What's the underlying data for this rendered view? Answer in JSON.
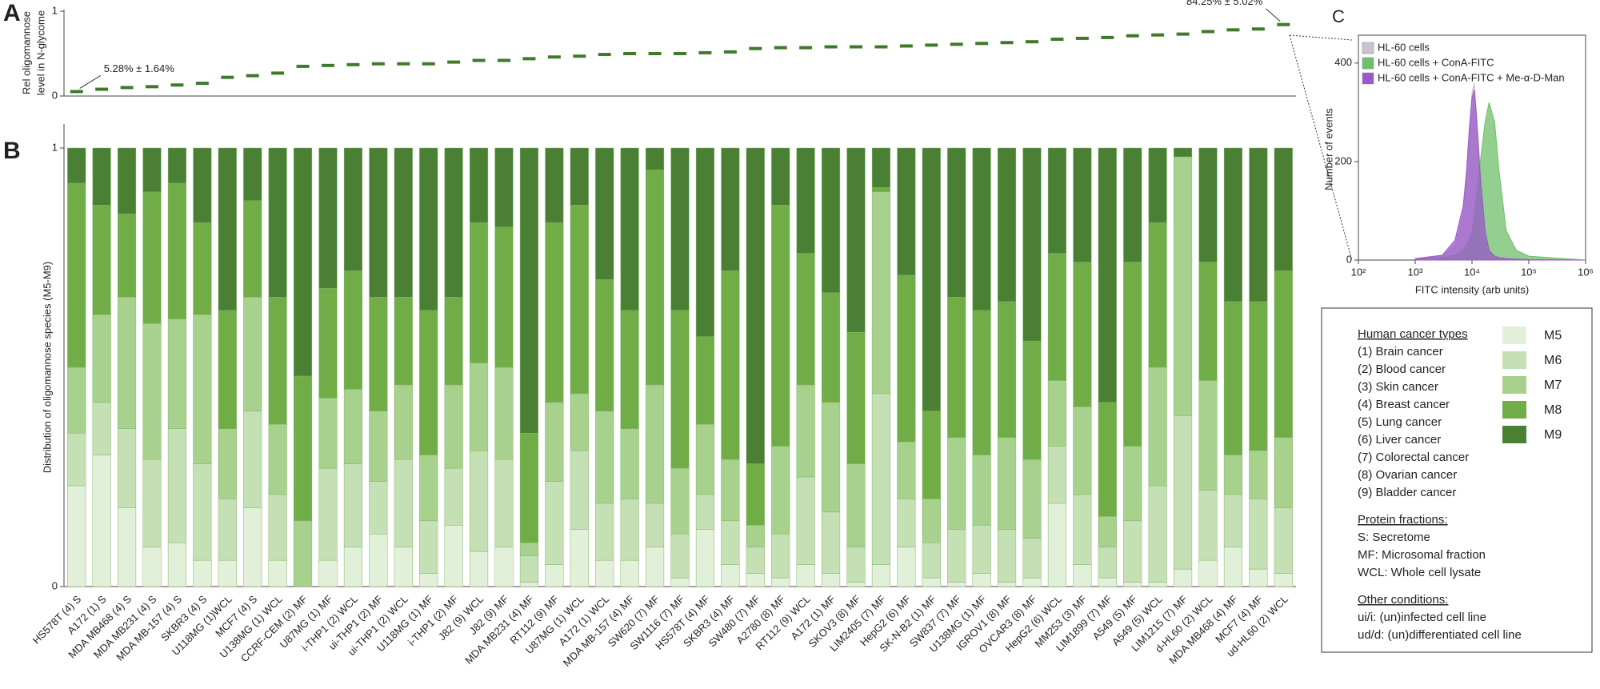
{
  "panel_labels": [
    "A",
    "B",
    "C"
  ],
  "chart_data": [
    {
      "type": "dot",
      "ylabel": [
        "Rel oligomannose",
        "level in N-glycome"
      ],
      "color": "#3f7a2c",
      "ylim": [
        0,
        1
      ],
      "yticks": [
        0,
        1
      ],
      "values": [
        0.0528,
        0.08,
        0.1,
        0.11,
        0.13,
        0.15,
        0.22,
        0.24,
        0.27,
        0.35,
        0.36,
        0.37,
        0.38,
        0.38,
        0.38,
        0.4,
        0.42,
        0.42,
        0.44,
        0.46,
        0.47,
        0.49,
        0.5,
        0.5,
        0.5,
        0.51,
        0.52,
        0.56,
        0.57,
        0.57,
        0.58,
        0.58,
        0.58,
        0.59,
        0.6,
        0.61,
        0.62,
        0.63,
        0.64,
        0.67,
        0.68,
        0.69,
        0.71,
        0.72,
        0.73,
        0.76,
        0.78,
        0.79,
        0.8425
      ],
      "value_labels": [
        "5.28% ± 1.64%",
        null,
        null,
        null,
        null,
        null,
        null,
        null,
        null,
        null,
        null,
        null,
        null,
        null,
        null,
        null,
        null,
        null,
        null,
        null,
        null,
        null,
        null,
        null,
        null,
        null,
        null,
        null,
        null,
        null,
        null,
        null,
        null,
        null,
        null,
        null,
        null,
        null,
        null,
        null,
        null,
        null,
        null,
        null,
        null,
        null,
        null,
        null,
        "84.25% ± 5.02%"
      ]
    },
    {
      "type": "stacked_bar",
      "ylabel": "Distribution of oligomannose species (M5-M9)",
      "ylim": [
        0,
        1
      ],
      "yticks": [
        0,
        1
      ],
      "categories": [
        "HS578T (4) S",
        "A172 (1) S",
        "MDA MB468 (4) S",
        "MDA MB231 (4) S",
        "MDA MB-157 (4) S",
        "SKBR3 (4) S",
        "U118MG (1)WCL",
        "MCF7 (4) S",
        "U138MG (1) WCL",
        "CCRF-CEM (2) MF",
        "U87MG (1) MF",
        "i-THP1 (2) WCL",
        "ui-THP1 (2) MF",
        "ui-THP1 (2) WCL",
        "U118MG (1) MF",
        "i-THP1 (2) MF",
        "J82 (9) WCL",
        "J82 (9) MF",
        "MDA MB231 (4) MF",
        "RT112 (9) MF",
        "U87MG (1) WCL",
        "A172 (1) WCL",
        "MDA MB-157 (4) MF",
        "SW620 (7) MF",
        "SW1116 (7) MF",
        "HS578T (4) MF",
        "SKBR3 (4) MF",
        "SW480 (7) MF",
        "A2780 (8) MF",
        "RT112 (9) WCL",
        "A172 (1) MF",
        "SKOV3 (8) MF",
        "LIM2405 (7) MF",
        "HepG2 (6) MF",
        "SK-N-B2 (1) MF",
        "SW837 (7) MF",
        "U138MG (1) MF",
        "IGROV1 (8) MF",
        "OVCAR3 (8) MF",
        "HepG2 (6) WCL",
        "MM253 (3) MF",
        "LIM1899 (7) MF",
        "A549 (5) MF",
        "A549 (5) WCL",
        "LIM1215 (7) MF",
        "d-HL60 (2) WCL",
        "MDA MB468 (4) MF",
        "MCF7 (4) MF",
        "ud-HL60 (2) WCL"
      ],
      "series": [
        {
          "name": "M5",
          "color": "#e2f0d9",
          "values": [
            0.23,
            0.3,
            0.18,
            0.09,
            0.1,
            0.06,
            0.06,
            0.18,
            0.06,
            0,
            0.06,
            0.09,
            0.12,
            0.09,
            0.03,
            0.14,
            0.08,
            0.09,
            0.01,
            0.05,
            0.13,
            0.06,
            0.06,
            0.09,
            0.02,
            0.13,
            0.05,
            0.03,
            0.02,
            0.05,
            0.03,
            0.01,
            0.05,
            0.09,
            0.02,
            0.01,
            0.03,
            0.01,
            0.02,
            0.19,
            0.05,
            0.02,
            0.01,
            0.01,
            0.04,
            0.06,
            0.09,
            0.04,
            0.03
          ]
        },
        {
          "name": "M6",
          "color": "#c5e0b4",
          "values": [
            0.12,
            0.12,
            0.18,
            0.2,
            0.26,
            0.22,
            0.14,
            0.22,
            0.15,
            0,
            0.21,
            0.19,
            0.12,
            0.2,
            0.12,
            0.13,
            0.23,
            0.2,
            0.06,
            0.19,
            0.18,
            0.13,
            0.14,
            0.1,
            0.1,
            0.08,
            0.1,
            0.06,
            0.1,
            0.2,
            0.14,
            0.08,
            0.39,
            0.11,
            0.08,
            0.12,
            0.11,
            0.12,
            0.09,
            0.13,
            0.16,
            0.07,
            0.14,
            0.22,
            0.35,
            0.16,
            0.12,
            0.16,
            0.15
          ]
        },
        {
          "name": "M7",
          "color": "#a9d18e",
          "values": [
            0.15,
            0.2,
            0.3,
            0.31,
            0.25,
            0.34,
            0.16,
            0.26,
            0.16,
            0.15,
            0.16,
            0.17,
            0.16,
            0.17,
            0.15,
            0.19,
            0.2,
            0.21,
            0.03,
            0.18,
            0.13,
            0.21,
            0.16,
            0.27,
            0.15,
            0.16,
            0.14,
            0.05,
            0.2,
            0.21,
            0.25,
            0.19,
            0.46,
            0.13,
            0.1,
            0.21,
            0.16,
            0.21,
            0.18,
            0.15,
            0.2,
            0.07,
            0.17,
            0.27,
            0.59,
            0.25,
            0.09,
            0.11,
            0.16
          ]
        },
        {
          "name": "M8",
          "color": "#70ad47",
          "values": [
            0.42,
            0.25,
            0.19,
            0.3,
            0.31,
            0.21,
            0.27,
            0.22,
            0.29,
            0.33,
            0.25,
            0.27,
            0.26,
            0.2,
            0.33,
            0.2,
            0.32,
            0.32,
            0.25,
            0.41,
            0.43,
            0.3,
            0.27,
            0.49,
            0.36,
            0.2,
            0.43,
            0.14,
            0.55,
            0.3,
            0.25,
            0.3,
            0.01,
            0.38,
            0.2,
            0.32,
            0.33,
            0.31,
            0.27,
            0.29,
            0.33,
            0.26,
            0.42,
            0.33,
            0,
            0.27,
            0.35,
            0.34,
            0.38
          ]
        },
        {
          "name": "M9",
          "color": "#4a7f34",
          "values": [
            0.08,
            0.13,
            0.15,
            0.1,
            0.08,
            0.17,
            0.37,
            0.12,
            0.34,
            0.52,
            0.32,
            0.28,
            0.34,
            0.34,
            0.37,
            0.34,
            0.17,
            0.18,
            0.65,
            0.17,
            0.13,
            0.3,
            0.37,
            0.05,
            0.37,
            0.43,
            0.28,
            0.72,
            0.13,
            0.24,
            0.33,
            0.42,
            0.09,
            0.29,
            0.6,
            0.34,
            0.37,
            0.35,
            0.44,
            0.24,
            0.26,
            0.58,
            0.26,
            0.17,
            0.02,
            0.26,
            0.35,
            0.35,
            0.28
          ]
        }
      ]
    },
    {
      "type": "area",
      "xlabel": "FITC intensity (arb units)",
      "ylabel": "Number of events",
      "xscale": "log",
      "legend": "upper left",
      "xlim": [
        100,
        1000000
      ],
      "xticks": [
        {
          "value": 100,
          "label": "10²"
        },
        {
          "value": 1000,
          "label": "10³"
        },
        {
          "value": 10000,
          "label": "10⁴"
        },
        {
          "value": 100000,
          "label": "10⁵"
        },
        {
          "value": 1000000,
          "label": "10⁶"
        }
      ],
      "ylim": [
        0,
        450
      ],
      "yticks": [
        0,
        200,
        400
      ],
      "x": [
        1000,
        3000,
        5000,
        7000,
        8000,
        9000,
        10000,
        11000,
        12000,
        14000,
        17000,
        20000,
        25000,
        30000,
        40000,
        60000,
        100000,
        1000000
      ],
      "series": [
        {
          "name": "HL-60 cells",
          "color": "#c9c3cf",
          "values": [
            2,
            8,
            30,
            90,
            160,
            260,
            340,
            360,
            300,
            180,
            60,
            20,
            8,
            5,
            3,
            2,
            1,
            0
          ]
        },
        {
          "name": "HL-60 cells + ConA-FITC",
          "color": "#6fbf6a",
          "values": [
            3,
            5,
            10,
            20,
            30,
            40,
            60,
            90,
            130,
            200,
            280,
            320,
            280,
            180,
            60,
            20,
            8,
            0
          ]
        },
        {
          "name": "HL-60 cells + ConA-FITC + Me-α-D-Man",
          "color": "#9b59c9",
          "values": [
            3,
            10,
            40,
            110,
            180,
            270,
            330,
            345,
            290,
            170,
            60,
            20,
            8,
            5,
            3,
            2,
            1,
            0
          ]
        }
      ]
    }
  ],
  "legend_box": {
    "cancer_types_title": "Human cancer types",
    "cancer_types": [
      "(1) Brain cancer",
      "(2) Blood cancer",
      "(3) Skin cancer",
      "(4) Breast cancer",
      "(5) Lung cancer",
      "(6) Liver cancer",
      "(7) Colorectal cancer",
      "(8) Ovarian cancer",
      "(9) Bladder cancer"
    ],
    "fractions_title": "Protein fractions:",
    "fractions": [
      "S: Secretome",
      "MF: Microsomal fraction",
      "WCL: Whole cell lysate"
    ],
    "other_title": "Other conditions:",
    "other": [
      "ui/i: (un)infected cell line",
      "ud/d: (un)differentiated cell line"
    ]
  }
}
